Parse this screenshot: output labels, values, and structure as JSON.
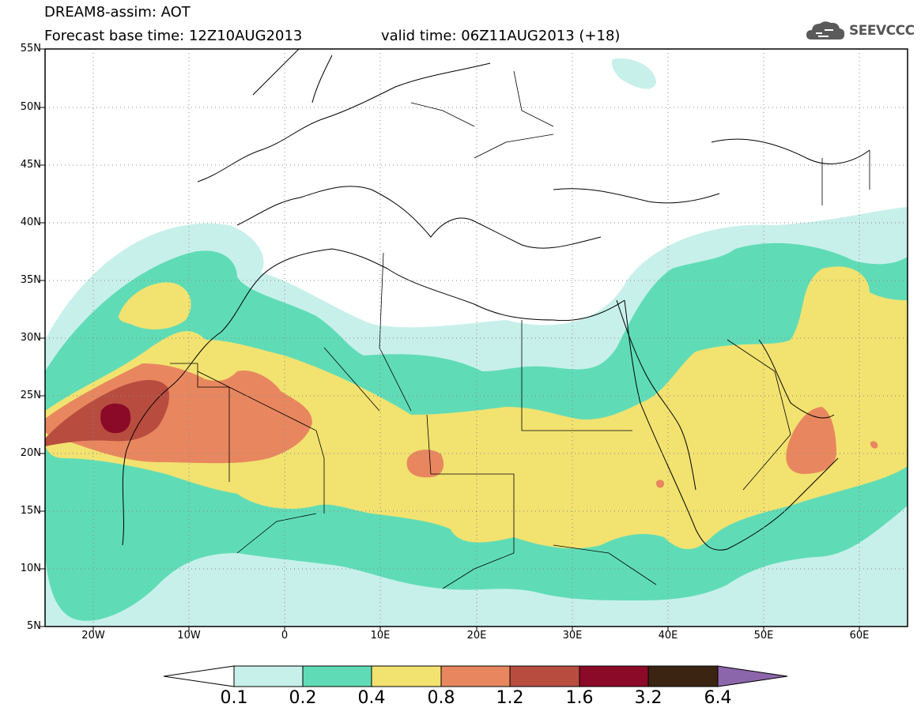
{
  "header": {
    "title": "DREAM8-assim: AOT",
    "base_time": "Forecast base time: 12Z10AUG2013",
    "valid_time": "valid time: 06Z11AUG2013 (+18)",
    "logo_text": "SEEVCCC"
  },
  "map": {
    "lat_labels": [
      "55N",
      "50N",
      "45N",
      "40N",
      "35N",
      "30N",
      "25N",
      "20N",
      "15N",
      "10N",
      "5N"
    ],
    "lon_labels": [
      "20W",
      "10W",
      "0",
      "10E",
      "20E",
      "30E",
      "40E",
      "50E",
      "60E"
    ]
  },
  "colorbar": {
    "labels": [
      "0.1",
      "0.2",
      "0.4",
      "0.8",
      "1.2",
      "1.6",
      "3.2",
      "6.4"
    ],
    "colors": [
      "#c8f0ea",
      "#5fdcb6",
      "#f2e270",
      "#e8875f",
      "#b84d3f",
      "#8b0a28",
      "#3b2412",
      "#8c66aa"
    ]
  },
  "legend": {
    "colors": {
      "c01": "#c8f0ea",
      "c02": "#5fdcb6",
      "c04": "#f2e270",
      "c08": "#e8875f",
      "c12": "#b84d3f",
      "c16": "#8b0a28",
      "border": "#000000",
      "grid": "#888888"
    }
  }
}
